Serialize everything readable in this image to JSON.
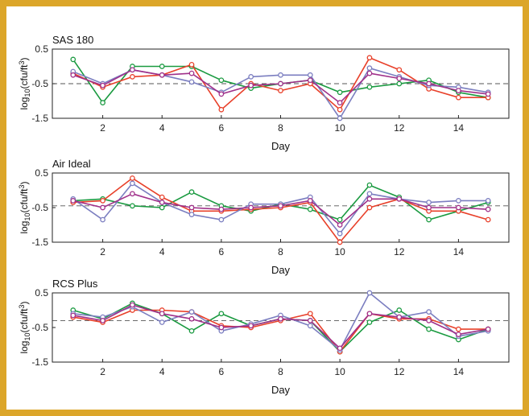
{
  "chart_data": [
    {
      "type": "line",
      "title": "SAS 180",
      "xlabel": "Day",
      "ylabel_base": "log",
      "ylabel_sub": "10",
      "ylabel_rest": "(cfu/ft",
      "ylabel_sup": "3",
      "ylabel_close": ")",
      "xlim": [
        0.3,
        15.7
      ],
      "ylim": [
        -1.5,
        0.5
      ],
      "xticks": [
        2,
        4,
        6,
        8,
        10,
        12,
        14
      ],
      "xtick_labels": [
        "2",
        "4",
        "6",
        "8",
        "10",
        "12",
        "14"
      ],
      "yticks": [
        0.5,
        -0.5,
        -1.5
      ],
      "ytick_labels": [
        "0.5",
        "-0.5",
        "-1.5"
      ],
      "reference_line": -0.5,
      "x": [
        1,
        2,
        3,
        4,
        5,
        6,
        7,
        8,
        9,
        10,
        11,
        12,
        13,
        14,
        15
      ],
      "series": [
        {
          "name": "green",
          "color": "#1a9a40",
          "values": [
            0.2,
            -1.05,
            0.0,
            0.0,
            0.0,
            -0.4,
            -0.63,
            -0.5,
            -0.4,
            -0.75,
            -0.6,
            -0.5,
            -0.4,
            -0.75,
            -0.9
          ]
        },
        {
          "name": "red",
          "color": "#e8402a",
          "values": [
            -0.2,
            -0.6,
            -0.3,
            -0.25,
            0.05,
            -1.25,
            -0.5,
            -0.7,
            -0.5,
            -1.25,
            0.25,
            -0.1,
            -0.65,
            -0.9,
            -0.9
          ]
        },
        {
          "name": "blue",
          "color": "#7b7ec0",
          "values": [
            -0.15,
            -0.5,
            -0.1,
            -0.25,
            -0.45,
            -0.75,
            -0.3,
            -0.25,
            -0.25,
            -1.5,
            -0.05,
            -0.3,
            -0.55,
            -0.6,
            -0.75
          ]
        },
        {
          "name": "purple",
          "color": "#a0308a",
          "values": [
            -0.25,
            -0.55,
            -0.1,
            -0.25,
            -0.2,
            -0.8,
            -0.55,
            -0.5,
            -0.4,
            -1.05,
            -0.2,
            -0.35,
            -0.5,
            -0.7,
            -0.8
          ]
        }
      ]
    },
    {
      "type": "line",
      "title": "Air Ideal",
      "xlabel": "Day",
      "ylabel_base": "log",
      "ylabel_sub": "10",
      "ylabel_rest": "(cfu/ft",
      "ylabel_sup": "3",
      "ylabel_close": ")",
      "xlim": [
        0.3,
        15.7
      ],
      "ylim": [
        -1.5,
        0.5
      ],
      "xticks": [
        2,
        4,
        6,
        8,
        10,
        12,
        14
      ],
      "xtick_labels": [
        "2",
        "4",
        "6",
        "8",
        "10",
        "12",
        "14"
      ],
      "yticks": [
        0.5,
        -0.5,
        -1.5
      ],
      "ytick_labels": [
        "0.5",
        "-0.5",
        "-1.5"
      ],
      "reference_line": -0.45,
      "x": [
        1,
        2,
        3,
        4,
        5,
        6,
        7,
        8,
        9,
        10,
        11,
        12,
        13,
        14,
        15
      ],
      "series": [
        {
          "name": "green",
          "color": "#1a9a40",
          "values": [
            -0.3,
            -0.25,
            -0.45,
            -0.5,
            -0.05,
            -0.45,
            -0.6,
            -0.4,
            -0.55,
            -0.85,
            0.15,
            -0.2,
            -0.85,
            -0.6,
            -0.35
          ]
        },
        {
          "name": "red",
          "color": "#e8402a",
          "values": [
            -0.35,
            -0.3,
            0.35,
            -0.2,
            -0.6,
            -0.6,
            -0.55,
            -0.5,
            -0.35,
            -1.5,
            -0.5,
            -0.25,
            -0.6,
            -0.6,
            -0.85
          ]
        },
        {
          "name": "blue",
          "color": "#7b7ec0",
          "values": [
            -0.25,
            -0.85,
            0.2,
            -0.35,
            -0.7,
            -0.85,
            -0.4,
            -0.4,
            -0.2,
            -1.25,
            -0.1,
            -0.25,
            -0.35,
            -0.3,
            -0.3
          ]
        },
        {
          "name": "purple",
          "color": "#a0308a",
          "values": [
            -0.3,
            -0.5,
            -0.1,
            -0.35,
            -0.5,
            -0.55,
            -0.5,
            -0.45,
            -0.3,
            -1.0,
            -0.25,
            -0.25,
            -0.5,
            -0.5,
            -0.55
          ]
        }
      ]
    },
    {
      "type": "line",
      "title": "RCS Plus",
      "xlabel": "Day",
      "ylabel_base": "log",
      "ylabel_sub": "10",
      "ylabel_rest": "(cfu/ft",
      "ylabel_sup": "3",
      "ylabel_close": ")",
      "xlim": [
        0.3,
        15.7
      ],
      "ylim": [
        -1.5,
        0.5
      ],
      "xticks": [
        2,
        4,
        6,
        8,
        10,
        12,
        14
      ],
      "xtick_labels": [
        "2",
        "4",
        "6",
        "8",
        "10",
        "12",
        "14"
      ],
      "yticks": [
        0.5,
        -0.5,
        -1.5
      ],
      "ytick_labels": [
        "0.5",
        "-0.5",
        "-1.5"
      ],
      "reference_line": -0.3,
      "x": [
        1,
        2,
        3,
        4,
        5,
        6,
        7,
        8,
        9,
        10,
        11,
        12,
        13,
        14,
        15
      ],
      "series": [
        {
          "name": "green",
          "color": "#1a9a40",
          "values": [
            0.0,
            -0.25,
            0.2,
            -0.1,
            -0.6,
            -0.1,
            -0.45,
            -0.25,
            -0.3,
            -1.2,
            -0.35,
            0.0,
            -0.55,
            -0.85,
            -0.55
          ]
        },
        {
          "name": "red",
          "color": "#e8402a",
          "values": [
            -0.2,
            -0.35,
            0.0,
            0.0,
            -0.05,
            -0.45,
            -0.5,
            -0.3,
            -0.1,
            -1.2,
            -0.1,
            -0.25,
            -0.25,
            -0.55,
            -0.55
          ]
        },
        {
          "name": "blue",
          "color": "#7b7ec0",
          "values": [
            -0.1,
            -0.2,
            0.1,
            -0.35,
            -0.05,
            -0.6,
            -0.4,
            -0.15,
            -0.45,
            -1.15,
            0.5,
            -0.2,
            -0.05,
            -0.75,
            -0.6
          ]
        },
        {
          "name": "purple",
          "color": "#a0308a",
          "values": [
            -0.15,
            -0.3,
            0.15,
            -0.1,
            -0.25,
            -0.5,
            -0.45,
            -0.25,
            -0.3,
            -1.1,
            -0.1,
            -0.2,
            -0.3,
            -0.7,
            -0.55
          ]
        }
      ]
    }
  ]
}
